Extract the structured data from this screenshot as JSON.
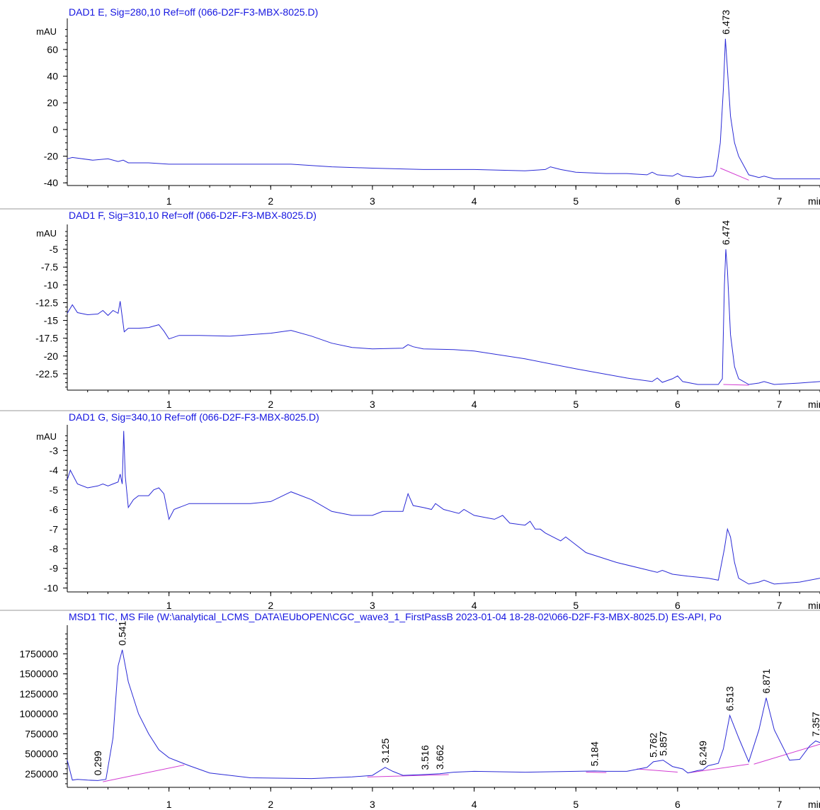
{
  "colors": {
    "title": "#1515e0",
    "trace": "#2a2ad6",
    "baseline": "#d23cd2",
    "axis": "#000000"
  },
  "x_unit": "min",
  "chart_data": [
    {
      "type": "line",
      "title": "DAD1 E, Sig=280,10 Ref=off (066-D2F-F3-MBX-8025.D)",
      "ylabel": "mAU",
      "xlim": [
        0,
        7.4
      ],
      "ylim": [
        -42,
        78
      ],
      "yticks": [
        60,
        40,
        20,
        0,
        -20,
        -40
      ],
      "xticks": [
        1,
        2,
        3,
        4,
        5,
        6,
        7
      ],
      "series": [
        {
          "x": [
            0.0,
            0.05,
            0.25,
            0.4,
            0.5,
            0.55,
            0.6,
            0.8,
            1.0,
            1.3,
            1.8,
            2.2,
            2.6,
            3.0,
            3.5,
            4.0,
            4.5,
            4.7,
            4.75,
            4.85,
            5.0,
            5.3,
            5.5,
            5.7,
            5.75,
            5.8,
            5.95,
            6.0,
            6.05,
            6.2,
            6.35,
            6.38,
            6.42,
            6.45,
            6.47,
            6.49,
            6.52,
            6.56,
            6.6,
            6.7,
            6.8,
            6.85,
            6.95,
            7.2,
            7.4
          ],
          "y": [
            -22,
            -21,
            -23,
            -22,
            -24,
            -23,
            -25,
            -25,
            -26,
            -26,
            -26,
            -26,
            -28,
            -29,
            -30,
            -30,
            -31,
            -30,
            -28,
            -30,
            -32,
            -33,
            -33,
            -34,
            -32,
            -34,
            -35,
            -33,
            -35,
            -36,
            -35,
            -31,
            -10,
            30,
            68,
            45,
            10,
            -10,
            -20,
            -34,
            -36,
            -35,
            -37,
            -37,
            -37
          ]
        }
      ],
      "baselines": [
        [
          6.42,
          -29,
          6.7,
          -38
        ]
      ],
      "peak_labels": [
        {
          "x": 6.473,
          "y": 68,
          "label": "6.473"
        }
      ]
    },
    {
      "type": "line",
      "title": "DAD1 F, Sig=310,10 Ref=off (066-D2F-F3-MBX-8025.D)",
      "ylabel": "mAU",
      "xlim": [
        0,
        7.4
      ],
      "ylim": [
        -24.8,
        -2.5
      ],
      "yticks": [
        -5,
        -7.5,
        -10,
        -12.5,
        -15,
        -17.5,
        -20,
        -22.5
      ],
      "xticks": [
        1,
        2,
        3,
        4,
        5,
        6,
        7
      ],
      "series": [
        {
          "x": [
            0.0,
            0.05,
            0.1,
            0.2,
            0.3,
            0.35,
            0.4,
            0.45,
            0.5,
            0.52,
            0.54,
            0.56,
            0.6,
            0.7,
            0.8,
            0.9,
            0.95,
            1.0,
            1.1,
            1.3,
            1.6,
            2.0,
            2.2,
            2.4,
            2.6,
            2.8,
            3.0,
            3.3,
            3.35,
            3.4,
            3.5,
            3.8,
            4.0,
            4.5,
            5.0,
            5.5,
            5.75,
            5.8,
            5.85,
            5.95,
            6.0,
            6.05,
            6.2,
            6.4,
            6.44,
            6.46,
            6.474,
            6.49,
            6.52,
            6.56,
            6.6,
            6.7,
            6.8,
            6.85,
            6.95,
            7.2,
            7.4
          ],
          "y": [
            -14,
            -12.8,
            -13.9,
            -14.2,
            -14.1,
            -13.6,
            -14.3,
            -13.6,
            -14.0,
            -12.3,
            -14.5,
            -16.6,
            -16.1,
            -16.1,
            -16.0,
            -15.6,
            -16.5,
            -17.6,
            -17.1,
            -17.1,
            -17.2,
            -16.8,
            -16.4,
            -17.2,
            -18.2,
            -18.8,
            -19.0,
            -18.9,
            -18.4,
            -18.7,
            -19.0,
            -19.1,
            -19.3,
            -20.4,
            -21.8,
            -23.1,
            -23.6,
            -23.1,
            -23.7,
            -23.2,
            -22.8,
            -23.6,
            -24.0,
            -24.0,
            -23.2,
            -10,
            -5.0,
            -8,
            -17,
            -21.5,
            -23.2,
            -24.0,
            -23.8,
            -23.6,
            -24.0,
            -23.8,
            -23.6
          ]
        }
      ],
      "baselines": [
        [
          6.45,
          -24.0,
          6.7,
          -24.1
        ]
      ],
      "peak_labels": [
        {
          "x": 6.474,
          "y": -5.0,
          "label": "6.474"
        }
      ]
    },
    {
      "type": "line",
      "title": "DAD1 G, Sig=340,10 Ref=off (066-D2F-F3-MBX-8025.D)",
      "ylabel": "mAU",
      "xlim": [
        0,
        7.4
      ],
      "ylim": [
        -10.2,
        -2.05
      ],
      "yticks": [
        -3,
        -4,
        -5,
        -6,
        -7,
        -8,
        -9,
        -10
      ],
      "xticks": [
        1,
        2,
        3,
        4,
        5,
        6,
        7
      ],
      "series": [
        {
          "x": [
            0.0,
            0.03,
            0.1,
            0.2,
            0.3,
            0.35,
            0.4,
            0.45,
            0.5,
            0.52,
            0.54,
            0.555,
            0.57,
            0.6,
            0.65,
            0.7,
            0.8,
            0.85,
            0.9,
            0.95,
            1.0,
            1.05,
            1.2,
            1.5,
            1.8,
            2.0,
            2.2,
            2.4,
            2.6,
            2.8,
            3.0,
            3.1,
            3.3,
            3.35,
            3.4,
            3.5,
            3.58,
            3.62,
            3.7,
            3.85,
            3.9,
            4.0,
            4.2,
            4.28,
            4.35,
            4.5,
            4.55,
            4.6,
            4.65,
            4.7,
            4.85,
            4.9,
            4.95,
            5.1,
            5.4,
            5.8,
            5.85,
            5.95,
            6.1,
            6.3,
            6.4,
            6.46,
            6.49,
            6.52,
            6.56,
            6.6,
            6.7,
            6.8,
            6.85,
            6.95,
            7.2,
            7.4
          ],
          "y": [
            -4.5,
            -4.0,
            -4.7,
            -4.9,
            -4.8,
            -4.7,
            -4.8,
            -4.7,
            -4.6,
            -4.2,
            -4.7,
            -2.0,
            -4.3,
            -5.9,
            -5.5,
            -5.3,
            -5.3,
            -5.0,
            -4.9,
            -5.2,
            -6.5,
            -6.0,
            -5.7,
            -5.7,
            -5.7,
            -5.6,
            -5.1,
            -5.5,
            -6.1,
            -6.3,
            -6.3,
            -6.1,
            -6.1,
            -5.2,
            -5.8,
            -5.9,
            -6.0,
            -5.7,
            -6.0,
            -6.2,
            -6.0,
            -6.3,
            -6.5,
            -6.3,
            -6.7,
            -6.8,
            -6.6,
            -7.0,
            -7.0,
            -7.2,
            -7.6,
            -7.4,
            -7.6,
            -8.2,
            -8.7,
            -9.2,
            -9.1,
            -9.3,
            -9.4,
            -9.5,
            -9.6,
            -8.0,
            -7.0,
            -7.4,
            -8.7,
            -9.5,
            -9.8,
            -9.7,
            -9.6,
            -9.8,
            -9.7,
            -9.5
          ]
        }
      ],
      "baselines": [],
      "peak_labels": []
    },
    {
      "type": "line",
      "title": "MSD1 TIC, MS File (W:\\analytical_LCMS_DATA\\EUbOPEN\\CGC_wave3_1_FirstPassB 2023-01-04 18-28-02\\066-D2F-F3-MBX-8025.D)     ES-API, Po",
      "ylabel": "",
      "xlim": [
        0,
        7.4
      ],
      "ylim": [
        80000,
        2020000
      ],
      "yticks": [
        1750000,
        1500000,
        1250000,
        1000000,
        750000,
        500000,
        250000
      ],
      "xticks": [
        1,
        2,
        3,
        4,
        5,
        6,
        7
      ],
      "series": [
        {
          "x": [
            0.0,
            0.05,
            0.1,
            0.2,
            0.3,
            0.38,
            0.45,
            0.5,
            0.541,
            0.6,
            0.7,
            0.8,
            0.9,
            1.0,
            1.1,
            1.2,
            1.4,
            1.8,
            2.4,
            2.8,
            3.0,
            3.125,
            3.2,
            3.3,
            3.516,
            3.662,
            3.8,
            4.0,
            4.5,
            5.0,
            5.184,
            5.3,
            5.5,
            5.7,
            5.762,
            5.857,
            5.95,
            6.05,
            6.1,
            6.2,
            6.249,
            6.3,
            6.4,
            6.45,
            6.513,
            6.6,
            6.7,
            6.8,
            6.871,
            6.95,
            7.1,
            7.2,
            7.3,
            7.357,
            7.4
          ],
          "y": [
            420000,
            170000,
            180000,
            170000,
            165000,
            180000,
            700000,
            1600000,
            1800000,
            1400000,
            1000000,
            750000,
            550000,
            450000,
            400000,
            350000,
            260000,
            200000,
            190000,
            210000,
            230000,
            330000,
            280000,
            230000,
            240000,
            250000,
            270000,
            280000,
            270000,
            280000,
            285000,
            280000,
            280000,
            330000,
            400000,
            420000,
            340000,
            310000,
            260000,
            290000,
            300000,
            350000,
            380000,
            560000,
            980000,
            700000,
            400000,
            800000,
            1200000,
            800000,
            420000,
            430000,
            600000,
            660000,
            640000
          ]
        }
      ],
      "baselines": [
        [
          0.35,
          150000,
          1.15,
          360000
        ],
        [
          2.95,
          210000,
          3.75,
          240000
        ],
        [
          5.1,
          270000,
          5.3,
          265000
        ],
        [
          5.6,
          310000,
          6.0,
          270000
        ],
        [
          6.1,
          260000,
          6.7,
          370000
        ],
        [
          6.75,
          370000,
          7.4,
          620000
        ]
      ],
      "peak_labels": [
        {
          "x": 0.299,
          "y": 175000,
          "label": "0.299"
        },
        {
          "x": 0.541,
          "y": 1800000,
          "label": "0.541"
        },
        {
          "x": 3.125,
          "y": 330000,
          "label": "3.125"
        },
        {
          "x": 3.516,
          "y": 245000,
          "label": "3.516"
        },
        {
          "x": 3.662,
          "y": 250000,
          "label": "3.662"
        },
        {
          "x": 5.184,
          "y": 290000,
          "label": "5.184"
        },
        {
          "x": 5.762,
          "y": 400000,
          "label": "5.762"
        },
        {
          "x": 5.857,
          "y": 420000,
          "label": "5.857"
        },
        {
          "x": 6.249,
          "y": 300000,
          "label": "6.249"
        },
        {
          "x": 6.513,
          "y": 980000,
          "label": "6.513"
        },
        {
          "x": 6.871,
          "y": 1200000,
          "label": "6.871"
        },
        {
          "x": 7.357,
          "y": 660000,
          "label": "7.357"
        }
      ]
    }
  ]
}
